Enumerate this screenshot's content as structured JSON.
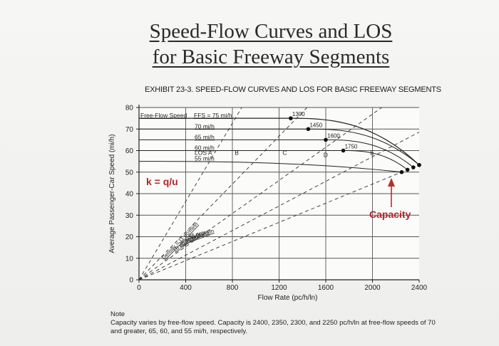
{
  "slide": {
    "title_line1": "Speed-Flow Curves and LOS",
    "title_line2": "for Basic Freeway Segments",
    "exhibit_title": "EXHIBIT 23-3.  SPEED-FLOW CURVES AND LOS FOR BASIC FREEWAY SEGMENTS",
    "note_head": "Note",
    "note_text": "Capacity varies by free-flow speed. Capacity is 2400, 2350, 2300, and 2250 pc/h/ln at free-flow speeds of 70 and greater, 65, 60, and 55 mi/h, respectively."
  },
  "chart_data": {
    "type": "line",
    "xlabel": "Flow Rate (pc/h/ln)",
    "ylabel": "Average Passenger-Car Speed (mi/h)",
    "xlim": [
      0,
      2400
    ],
    "ylim": [
      0,
      80
    ],
    "xticks": [
      0,
      400,
      800,
      1200,
      1600,
      2000,
      2400
    ],
    "yticks": [
      0,
      10,
      20,
      30,
      40,
      50,
      60,
      70,
      80
    ],
    "grid": true,
    "ffs_header": "Free-Flow Speed",
    "series": [
      {
        "name": "FFS = 75 mi/h",
        "ffs": 75,
        "breakpoint": 1300,
        "capacity": 2400,
        "speed_at_capacity": 53.3
      },
      {
        "name": "70 mi/h",
        "ffs": 70,
        "breakpoint": 1450,
        "capacity": 2400,
        "speed_at_capacity": 53.3
      },
      {
        "name": "65 mi/h",
        "ffs": 65,
        "breakpoint": 1600,
        "capacity": 2350,
        "speed_at_capacity": 52.2
      },
      {
        "name": "60 mi/h",
        "ffs": 60,
        "breakpoint": 1750,
        "capacity": 2300,
        "speed_at_capacity": 51.1
      },
      {
        "name": "55 mi/h",
        "ffs": 55,
        "breakpoint": 0,
        "capacity": 2250,
        "speed_at_capacity": 50.0
      }
    ],
    "breakpoint_labels": [
      "1300",
      "1450",
      "1600",
      "1750"
    ],
    "density_lines": [
      {
        "label": "Density = 11 pc/mi/ln",
        "density": 11
      },
      {
        "label": "18 pc/mi/ln",
        "density": 18
      },
      {
        "label": "26 pc/mi/ln",
        "density": 26
      },
      {
        "label": "35 pc/mi/ln",
        "density": 35
      },
      {
        "label": "45 pc/mi/ln",
        "density": 45
      }
    ],
    "los_labels": [
      "LOS A",
      "B",
      "C",
      "D",
      "E"
    ],
    "annotations": {
      "formula": "k = q/u",
      "capacity": "Capacity"
    }
  }
}
